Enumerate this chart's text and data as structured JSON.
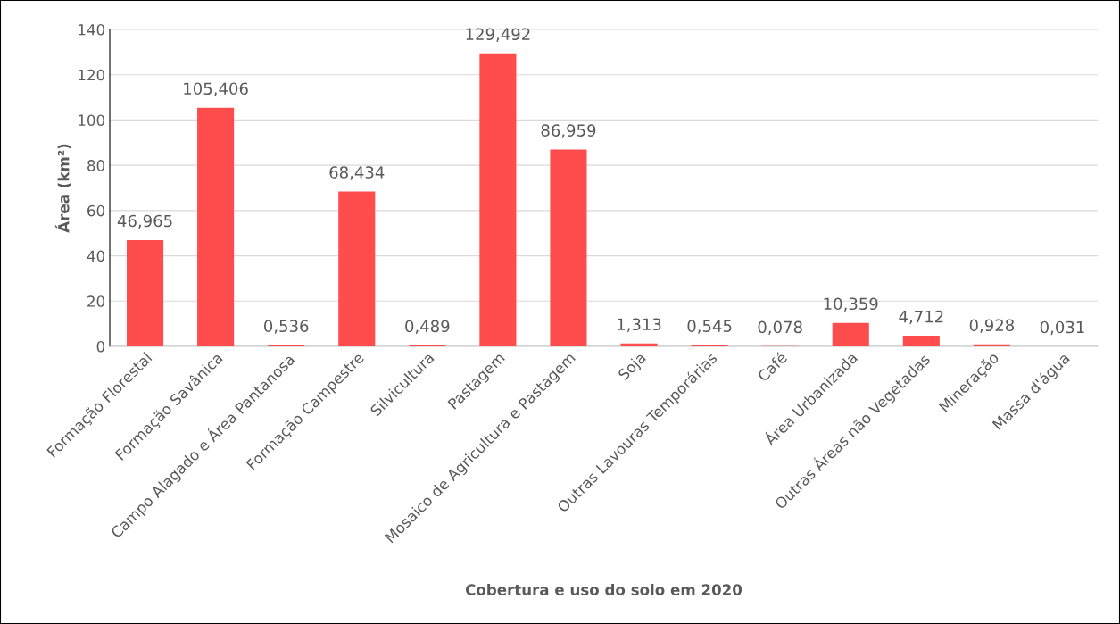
{
  "chart_data": {
    "type": "bar",
    "xlabel": "Cobertura e uso do solo em 2020",
    "ylabel": "Área (km²)",
    "categories": [
      "Formação Florestal",
      "Formação Savânica",
      "Campo Alagado e Área Pantanosa",
      "Formação Campestre",
      "Silvicultura",
      "Pastagem",
      "Mosaico de Agricultura e Pastagem",
      "Soja",
      "Outras Lavouras Temporárias",
      "Café",
      "Área Urbanizada",
      "Outras Áreas não Vegetadas",
      "Mineração",
      "Massa d'água"
    ],
    "values": [
      46.965,
      105.406,
      0.536,
      68.434,
      0.489,
      129.492,
      86.959,
      1.313,
      0.545,
      0.078,
      10.359,
      4.712,
      0.928,
      0.031
    ],
    "value_labels": [
      "46,965",
      "105,406",
      "0,536",
      "68,434",
      "0,489",
      "129,492",
      "86,959",
      "1,313",
      "0,545",
      "0,078",
      "10,359",
      "4,712",
      "0,928",
      "0,031"
    ],
    "color": "#ff4d4d",
    "ylim": [
      0,
      140
    ],
    "yticks": [
      0,
      20,
      40,
      60,
      80,
      100,
      120,
      140
    ],
    "grid": "y",
    "legend": false
  }
}
